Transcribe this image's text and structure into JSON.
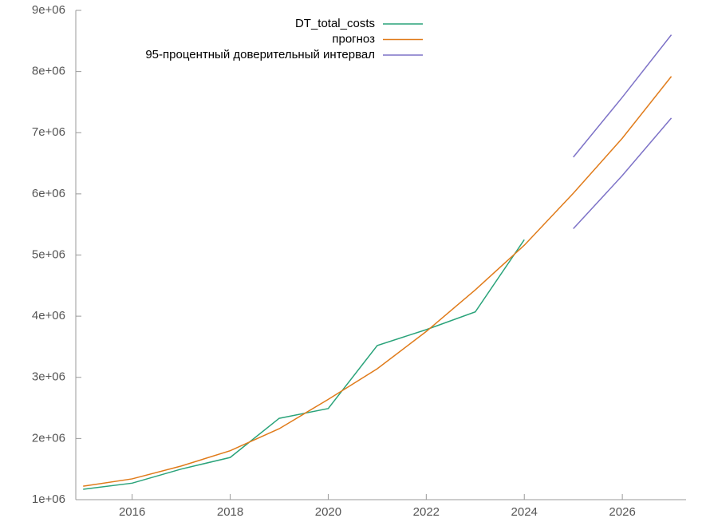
{
  "chart_data": {
    "type": "line",
    "x": [
      2015,
      2016,
      2017,
      2018,
      2019,
      2020,
      2021,
      2022,
      2023,
      2024,
      2025,
      2026,
      2027
    ],
    "series": [
      {
        "name": "DT_total_costs",
        "color": "#2aa37a",
        "values": [
          1170000,
          1270000,
          1500000,
          1690000,
          2330000,
          2490000,
          3520000,
          3780000,
          4070000,
          5250000,
          null,
          null,
          null
        ]
      },
      {
        "name": "прогноз",
        "color": "#e07b1a",
        "values": [
          1220000,
          1340000,
          1550000,
          1800000,
          2160000,
          2640000,
          3140000,
          3750000,
          4430000,
          5160000,
          6010000,
          6910000,
          7920000
        ]
      },
      {
        "name": "95-процентный доверительный интервал",
        "color": "#7d72c7",
        "low": [
          null,
          null,
          null,
          null,
          null,
          null,
          null,
          null,
          null,
          null,
          5430000,
          6300000,
          7240000
        ],
        "high": [
          null,
          null,
          null,
          null,
          null,
          null,
          null,
          null,
          null,
          null,
          6600000,
          7580000,
          8600000
        ]
      }
    ],
    "xlim": [
      2014.85,
      2027.3
    ],
    "xticks": [
      2016,
      2018,
      2020,
      2022,
      2024,
      2026
    ],
    "ylim": [
      1000000,
      9000000
    ],
    "yticks": [
      {
        "value": 1000000,
        "label": "1e+06"
      },
      {
        "value": 2000000,
        "label": "2e+06"
      },
      {
        "value": 3000000,
        "label": "3e+06"
      },
      {
        "value": 4000000,
        "label": "4e+06"
      },
      {
        "value": 5000000,
        "label": "5e+06"
      },
      {
        "value": 6000000,
        "label": "6e+06"
      },
      {
        "value": 7000000,
        "label": "7e+06"
      },
      {
        "value": 8000000,
        "label": "8e+06"
      },
      {
        "value": 9000000,
        "label": "9e+06"
      }
    ],
    "grid": false,
    "legend": "top"
  }
}
